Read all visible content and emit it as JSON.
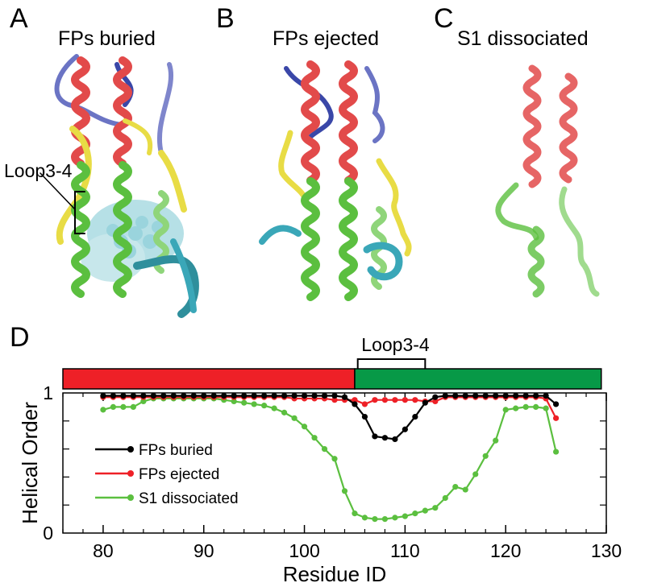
{
  "panels": [
    {
      "letter": "A",
      "title": "FPs buried",
      "annotation": "Loop3-4"
    },
    {
      "letter": "B",
      "title": "FPs ejected"
    },
    {
      "letter": "C",
      "title": "S1 dissociated"
    }
  ],
  "panel_d_letter": "D",
  "colors": {
    "helix": "#e24a4a",
    "coil_blue": "#3a47a8",
    "yellow": "#e8dc45",
    "green": "#5bbf3f",
    "cyan": "#3aa7b8",
    "bar_red": "#ee2027",
    "bar_green": "#079947"
  },
  "chart_data": {
    "type": "line",
    "xlabel": "Residue ID",
    "ylabel": "Helical Order",
    "xlim": [
      76,
      130
    ],
    "ylim": [
      0,
      1
    ],
    "x_ticks": [
      "80",
      "90",
      "100",
      "110",
      "120",
      "130"
    ],
    "y_ticks": [
      "0",
      "1"
    ],
    "bar_annotation": "Loop3-4",
    "domain_bar": [
      {
        "from": 76,
        "to": 105,
        "color": "#ee2027"
      },
      {
        "from": 105,
        "to": 129.5,
        "color": "#079947"
      }
    ],
    "loop_bracket": [
      105.3,
      112
    ],
    "legend": {
      "placement": "bottom-left"
    },
    "x": [
      80,
      81,
      82,
      83,
      84,
      85,
      86,
      87,
      88,
      89,
      90,
      91,
      92,
      93,
      94,
      95,
      96,
      97,
      98,
      99,
      100,
      101,
      102,
      103,
      104,
      105,
      106,
      107,
      108,
      109,
      110,
      111,
      112,
      113,
      114,
      115,
      116,
      117,
      118,
      119,
      120,
      121,
      122,
      123,
      124,
      125
    ],
    "series": [
      {
        "name": "FPs buried",
        "color": "#000000",
        "values": [
          0.98,
          0.98,
          0.98,
          0.98,
          0.98,
          0.98,
          0.98,
          0.98,
          0.98,
          0.98,
          0.98,
          0.98,
          0.98,
          0.98,
          0.98,
          0.98,
          0.98,
          0.98,
          0.98,
          0.98,
          0.98,
          0.98,
          0.98,
          0.98,
          0.97,
          0.92,
          0.83,
          0.69,
          0.68,
          0.67,
          0.74,
          0.83,
          0.93,
          0.97,
          0.98,
          0.98,
          0.98,
          0.98,
          0.98,
          0.98,
          0.98,
          0.98,
          0.98,
          0.98,
          0.98,
          0.92
        ]
      },
      {
        "name": "FPs ejected",
        "color": "#ee2027",
        "values": [
          0.97,
          0.97,
          0.97,
          0.97,
          0.97,
          0.97,
          0.97,
          0.97,
          0.97,
          0.97,
          0.97,
          0.97,
          0.97,
          0.97,
          0.97,
          0.97,
          0.97,
          0.97,
          0.97,
          0.96,
          0.96,
          0.96,
          0.96,
          0.95,
          0.95,
          0.95,
          0.92,
          0.95,
          0.95,
          0.95,
          0.95,
          0.95,
          0.94,
          0.94,
          0.97,
          0.97,
          0.97,
          0.97,
          0.97,
          0.97,
          0.97,
          0.97,
          0.97,
          0.97,
          0.96,
          0.82
        ]
      },
      {
        "name": "S1 dissociated",
        "color": "#5bbf3f",
        "values": [
          0.88,
          0.9,
          0.9,
          0.9,
          0.94,
          0.96,
          0.96,
          0.96,
          0.96,
          0.96,
          0.96,
          0.96,
          0.95,
          0.94,
          0.93,
          0.92,
          0.91,
          0.89,
          0.86,
          0.82,
          0.76,
          0.68,
          0.6,
          0.53,
          0.3,
          0.14,
          0.11,
          0.1,
          0.1,
          0.11,
          0.12,
          0.14,
          0.16,
          0.18,
          0.25,
          0.33,
          0.31,
          0.42,
          0.55,
          0.66,
          0.88,
          0.89,
          0.9,
          0.9,
          0.89,
          0.58
        ]
      }
    ]
  }
}
